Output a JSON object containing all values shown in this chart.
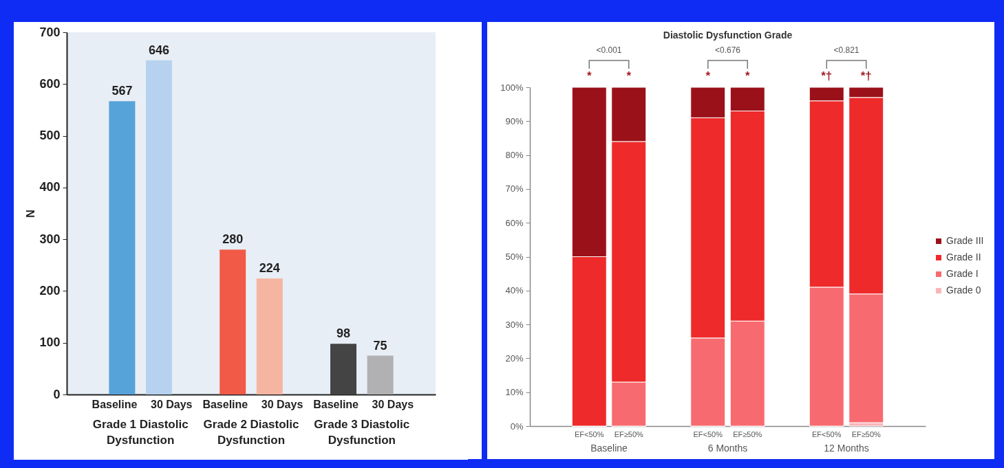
{
  "chart_data": [
    {
      "type": "bar",
      "categories": [
        "Baseline",
        "30 Days",
        "Baseline",
        "30 Days",
        "Baseline",
        "30 Days"
      ],
      "values": [
        567,
        646,
        280,
        224,
        98,
        75
      ],
      "colors": [
        "#56a3d9",
        "#b6d2ee",
        "#f05a46",
        "#f6b5a1",
        "#444444",
        "#b1b1b3"
      ],
      "ylim": [
        0,
        700
      ],
      "yticks": [
        0,
        100,
        200,
        300,
        400,
        500,
        600,
        700
      ],
      "ylabel": "N",
      "data_labels": true,
      "annotations": [
        "Grade 1 Diastolic Dysfunction",
        "Grade 2 Diastolic Dysfunction",
        "Grade 3 Diastolic Dysfunction"
      ]
    },
    {
      "type": "bar",
      "stacked": true,
      "title": "Diastolic Dysfunction Grade",
      "categories": [
        "EF<50%",
        "EF≥50%",
        "EF<50%",
        "EF≥50%",
        "EF<50%",
        "EF≥50%"
      ],
      "series": [
        {
          "name": "Grade 0",
          "color": "#f9b6b9",
          "values": [
            0,
            0,
            0,
            0,
            0,
            1
          ]
        },
        {
          "name": "Grade I",
          "color": "#f76b70",
          "values": [
            0,
            13,
            26,
            31,
            41,
            38
          ]
        },
        {
          "name": "Grade II",
          "color": "#ee2a2a",
          "values": [
            50,
            71,
            65,
            62,
            55,
            58
          ]
        },
        {
          "name": "Grade III",
          "color": "#9b1119",
          "values": [
            50,
            16,
            9,
            7,
            4,
            3
          ]
        }
      ],
      "ylim": [
        0,
        100
      ],
      "yticks": [
        {
          "value": 0,
          "label": "0%"
        },
        {
          "value": 10,
          "label": "10%"
        },
        {
          "value": 20,
          "label": "20%"
        },
        {
          "value": 30,
          "label": "30%"
        },
        {
          "value": 40,
          "label": "40%"
        },
        {
          "value": 50,
          "label": "50%"
        },
        {
          "value": 60,
          "label": "60%"
        },
        {
          "value": 70,
          "label": "70%"
        },
        {
          "value": 80,
          "label": "80%"
        },
        {
          "value": 90,
          "label": "90%"
        },
        {
          "value": 100,
          "label": "100%"
        }
      ],
      "legend": "right",
      "annotations": [
        "Baseline",
        "6 Months",
        "12 Months",
        "<0.001",
        "<0.676",
        "<0.821",
        "*",
        "*",
        "*",
        "*",
        "*†",
        "*†"
      ]
    }
  ]
}
